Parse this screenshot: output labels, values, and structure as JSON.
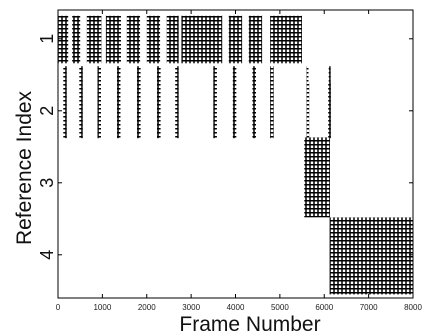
{
  "chart_data": {
    "type": "scatter",
    "xlabel": "Frame Number",
    "ylabel": "Reference Index",
    "xlim": [
      0,
      8000
    ],
    "ylim": [
      0.6,
      4.6
    ],
    "y_inverted": true,
    "grid": false,
    "x_ticks": [
      "0",
      "1000",
      "2000",
      "3000",
      "4000",
      "5000",
      "6000",
      "7000",
      "8000"
    ],
    "y_ticks": [
      "1",
      "2",
      "3",
      "4"
    ],
    "marker": "+",
    "colors": {
      "marks": "#000000",
      "axes": "#000000",
      "background": "#ffffff"
    },
    "series": [
      {
        "values": [
          {
            "x0": 0,
            "x1": 230,
            "y0": 0.68,
            "y1": 1.34
          },
          {
            "x0": 320,
            "x1": 500,
            "y0": 0.68,
            "y1": 1.34
          },
          {
            "x0": 650,
            "x1": 980,
            "y0": 0.68,
            "y1": 1.34
          },
          {
            "x0": 1080,
            "x1": 1420,
            "y0": 0.68,
            "y1": 1.34
          },
          {
            "x0": 1550,
            "x1": 1850,
            "y0": 0.68,
            "y1": 1.34
          },
          {
            "x0": 2000,
            "x1": 2300,
            "y0": 0.68,
            "y1": 1.34
          },
          {
            "x0": 2450,
            "x1": 2720,
            "y0": 0.68,
            "y1": 1.34
          },
          {
            "x0": 2780,
            "x1": 3700,
            "y0": 0.68,
            "y1": 1.34
          },
          {
            "x0": 3850,
            "x1": 4150,
            "y0": 0.68,
            "y1": 1.34
          },
          {
            "x0": 4300,
            "x1": 4600,
            "y0": 0.68,
            "y1": 1.34
          },
          {
            "x0": 4780,
            "x1": 5500,
            "y0": 0.68,
            "y1": 1.34
          },
          {
            "x0": 5600,
            "x1": 5620,
            "y0": 1.38,
            "y1": 1.6
          },
          {
            "x0": 6100,
            "x1": 6130,
            "y0": 1.38,
            "y1": 1.6
          }
        ]
      },
      {
        "values": [
          {
            "x0": 120,
            "x1": 200,
            "y0": 1.38,
            "y1": 2.38
          },
          {
            "x0": 480,
            "x1": 560,
            "y0": 1.38,
            "y1": 2.38
          },
          {
            "x0": 890,
            "x1": 970,
            "y0": 1.38,
            "y1": 2.38
          },
          {
            "x0": 1330,
            "x1": 1410,
            "y0": 1.38,
            "y1": 2.38
          },
          {
            "x0": 1780,
            "x1": 1860,
            "y0": 1.38,
            "y1": 2.38
          },
          {
            "x0": 2230,
            "x1": 2310,
            "y0": 1.38,
            "y1": 2.38
          },
          {
            "x0": 2640,
            "x1": 2720,
            "y0": 1.38,
            "y1": 2.38
          },
          {
            "x0": 3500,
            "x1": 3580,
            "y0": 1.38,
            "y1": 2.38
          },
          {
            "x0": 3940,
            "x1": 4020,
            "y0": 1.38,
            "y1": 2.38
          },
          {
            "x0": 4380,
            "x1": 4460,
            "y0": 1.38,
            "y1": 2.38
          },
          {
            "x0": 4780,
            "x1": 4860,
            "y0": 1.38,
            "y1": 2.38
          },
          {
            "x0": 5600,
            "x1": 5660,
            "y0": 1.6,
            "y1": 2.38
          },
          {
            "x0": 6090,
            "x1": 6150,
            "y0": 1.6,
            "y1": 2.38
          }
        ]
      },
      {
        "values": [
          {
            "x0": 5550,
            "x1": 6130,
            "y0": 2.37,
            "y1": 3.48
          }
        ]
      },
      {
        "values": [
          {
            "x0": 6120,
            "x1": 8000,
            "y0": 3.48,
            "y1": 4.55
          }
        ]
      }
    ]
  }
}
